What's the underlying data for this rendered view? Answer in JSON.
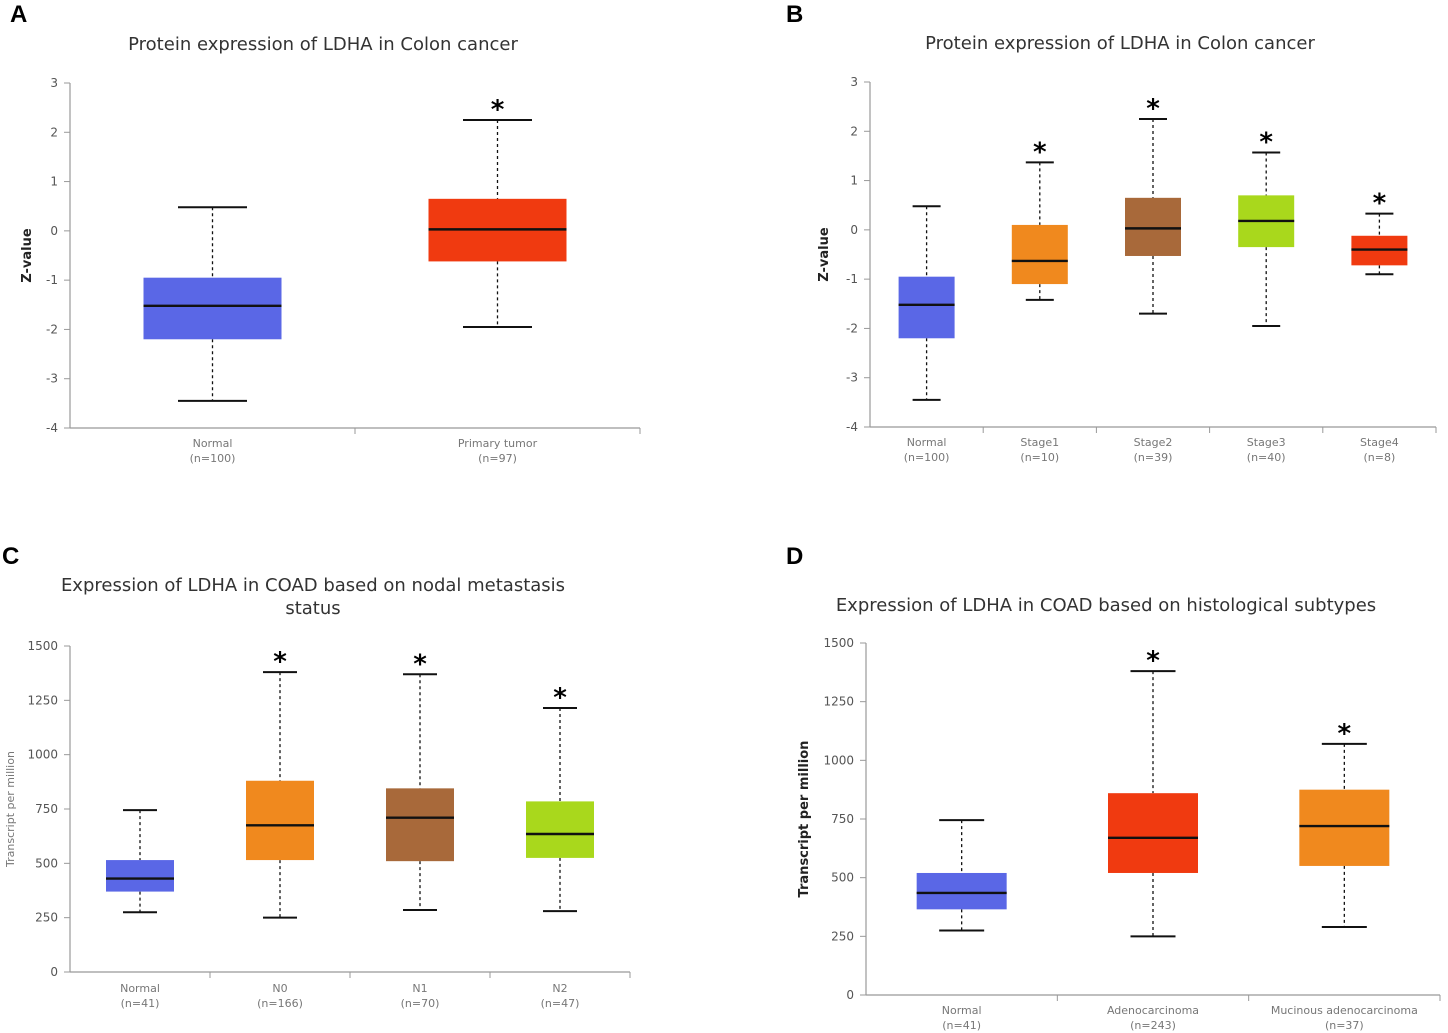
{
  "chart_data": [
    {
      "panel": "A",
      "type": "box",
      "title": [
        "Protein expression of LDHA in Colon cancer"
      ],
      "xlabel": "",
      "ylabel": "Z-value",
      "ylim": [
        -4,
        3
      ],
      "yticks": [
        3,
        2,
        1,
        0,
        -1,
        -2,
        -3,
        -4
      ],
      "ytick_labels": [
        "3",
        "2",
        "1",
        "0",
        "-1",
        "-2",
        "-3",
        "-4"
      ],
      "categories": [
        {
          "name": "Normal",
          "n": "(n=100)",
          "color": "#5a67e6",
          "whisker_low": -3.45,
          "q1": -2.2,
          "median": -1.52,
          "q3": -0.95,
          "whisker_high": 0.48,
          "star": ""
        },
        {
          "name": "Primary tumor",
          "n": "(n=97)",
          "color": "#f03a10",
          "whisker_low": -1.95,
          "q1": -0.62,
          "median": 0.03,
          "q3": 0.65,
          "whisker_high": 2.25,
          "star": "*"
        }
      ]
    },
    {
      "panel": "B",
      "type": "box",
      "title": [
        "Protein expression of LDHA in Colon cancer"
      ],
      "xlabel": "",
      "ylabel": "Z-value",
      "ylim": [
        -4,
        3
      ],
      "yticks": [
        3,
        2,
        1,
        0,
        -1,
        -2,
        -3,
        -4
      ],
      "ytick_labels": [
        "3",
        "2",
        "1",
        "0",
        "-1",
        "-2",
        "-3",
        "-4"
      ],
      "categories": [
        {
          "name": "Normal",
          "n": "(n=100)",
          "color": "#5a67e6",
          "whisker_low": -3.45,
          "q1": -2.2,
          "median": -1.52,
          "q3": -0.95,
          "whisker_high": 0.48,
          "star": ""
        },
        {
          "name": "Stage1",
          "n": "(n=10)",
          "color": "#f0891e",
          "whisker_low": -1.42,
          "q1": -1.1,
          "median": -0.63,
          "q3": 0.1,
          "whisker_high": 1.37,
          "star": "*"
        },
        {
          "name": "Stage2",
          "n": "(n=39)",
          "color": "#a8693a",
          "whisker_low": -1.7,
          "q1": -0.53,
          "median": 0.03,
          "q3": 0.65,
          "whisker_high": 2.25,
          "star": "*"
        },
        {
          "name": "Stage3",
          "n": "(n=40)",
          "color": "#a9d81c",
          "whisker_low": -1.95,
          "q1": -0.35,
          "median": 0.18,
          "q3": 0.7,
          "whisker_high": 1.57,
          "star": "*"
        },
        {
          "name": "Stage4",
          "n": "(n=8)",
          "color": "#f03a10",
          "whisker_low": -0.9,
          "q1": -0.72,
          "median": -0.4,
          "q3": -0.12,
          "whisker_high": 0.33,
          "star": "*"
        }
      ]
    },
    {
      "panel": "C",
      "type": "box",
      "title": [
        "Expression of LDHA in COAD based on nodal metastasis",
        "status"
      ],
      "xlabel": "",
      "ylabel": "Transcript per million",
      "ylim": [
        0,
        1500
      ],
      "yticks": [
        1500,
        1250,
        1000,
        750,
        500,
        250,
        0
      ],
      "ytick_labels": [
        "1500",
        "1250",
        "1000",
        "750",
        "500",
        "250",
        "0"
      ],
      "categories": [
        {
          "name": "Normal",
          "n": "(n=41)",
          "color": "#5a67e6",
          "whisker_low": 275,
          "q1": 370,
          "median": 430,
          "q3": 515,
          "whisker_high": 745,
          "star": ""
        },
        {
          "name": "N0",
          "n": "(n=166)",
          "color": "#f0891e",
          "whisker_low": 250,
          "q1": 515,
          "median": 675,
          "q3": 880,
          "whisker_high": 1380,
          "star": "*"
        },
        {
          "name": "N1",
          "n": "(n=70)",
          "color": "#a8693a",
          "whisker_low": 285,
          "q1": 510,
          "median": 710,
          "q3": 845,
          "whisker_high": 1370,
          "star": "*"
        },
        {
          "name": "N2",
          "n": "(n=47)",
          "color": "#a9d81c",
          "whisker_low": 280,
          "q1": 525,
          "median": 635,
          "q3": 785,
          "whisker_high": 1215,
          "star": "*"
        }
      ]
    },
    {
      "panel": "D",
      "type": "box",
      "title": [
        "Expression of LDHA in COAD based on histological subtypes"
      ],
      "xlabel": "",
      "ylabel": "Transcript per million",
      "ylim": [
        0,
        1500
      ],
      "yticks": [
        1500,
        1250,
        1000,
        750,
        500,
        250,
        0
      ],
      "ytick_labels": [
        "1500",
        "1250",
        "1000",
        "750",
        "500",
        "250",
        "0"
      ],
      "categories": [
        {
          "name": "Normal",
          "n": "(n=41)",
          "color": "#5a67e6",
          "whisker_low": 275,
          "q1": 365,
          "median": 435,
          "q3": 520,
          "whisker_high": 745,
          "star": ""
        },
        {
          "name": "Adenocarcinoma",
          "n": "(n=243)",
          "color": "#f03a10",
          "whisker_low": 250,
          "q1": 520,
          "median": 670,
          "q3": 860,
          "whisker_high": 1380,
          "star": "*"
        },
        {
          "name": "Mucinous adenocarcinoma",
          "n": "(n=37)",
          "color": "#f0891e",
          "whisker_low": 290,
          "q1": 550,
          "median": 720,
          "q3": 875,
          "whisker_high": 1070,
          "star": "*"
        }
      ]
    }
  ]
}
